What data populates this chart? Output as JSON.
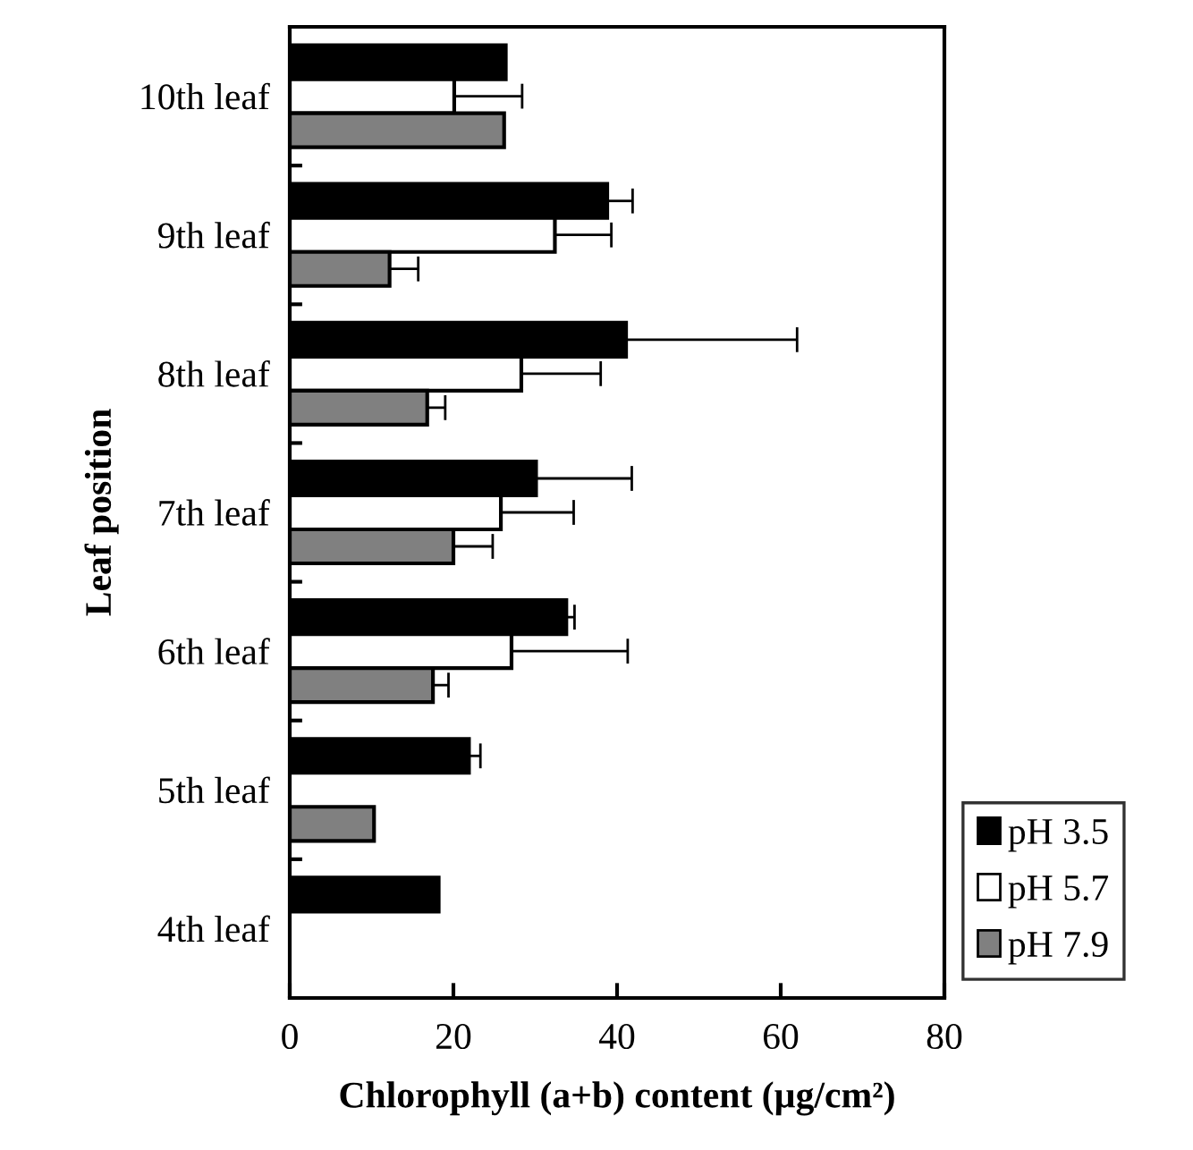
{
  "chart_data": {
    "type": "bar",
    "orientation": "horizontal",
    "categories": [
      "10th leaf",
      "9th leaf",
      "8th leaf",
      "7th leaf",
      "6th leaf",
      "5th leaf",
      "4th leaf"
    ],
    "series": [
      {
        "name": "pH 3.5",
        "color": "#000000",
        "values": [
          26.4,
          38.8,
          41.1,
          30.1,
          33.8,
          21.9,
          18.2
        ],
        "errors": [
          null,
          [
            38.8,
            41.9
          ],
          [
            41.1,
            62.0
          ],
          [
            30.1,
            41.8
          ],
          [
            33.8,
            34.8
          ],
          [
            21.9,
            23.3
          ],
          null
        ]
      },
      {
        "name": "pH 5.7",
        "color": "#ffffff",
        "values": [
          20.1,
          32.4,
          28.3,
          25.8,
          27.1,
          null,
          null
        ],
        "errors": [
          [
            20.1,
            28.4
          ],
          [
            32.4,
            39.3
          ],
          [
            28.3,
            38.0
          ],
          [
            25.8,
            34.7
          ],
          [
            27.1,
            41.3
          ],
          null,
          null
        ]
      },
      {
        "name": "pH 7.9",
        "color": "#808080",
        "values": [
          26.2,
          12.2,
          16.8,
          20.0,
          17.5,
          10.3,
          null
        ],
        "errors": [
          null,
          [
            12.2,
            15.7
          ],
          [
            16.8,
            19.0
          ],
          [
            20.0,
            24.8
          ],
          [
            17.5,
            19.4
          ],
          null,
          null
        ]
      }
    ],
    "xlabel": "Chlorophyll (a+b) content (µg/cm²)",
    "ylabel": "Leaf position",
    "xlim": [
      0,
      80
    ],
    "xticks": [
      0,
      20,
      40,
      60,
      80
    ],
    "grid": false,
    "legend": "bottom right"
  }
}
